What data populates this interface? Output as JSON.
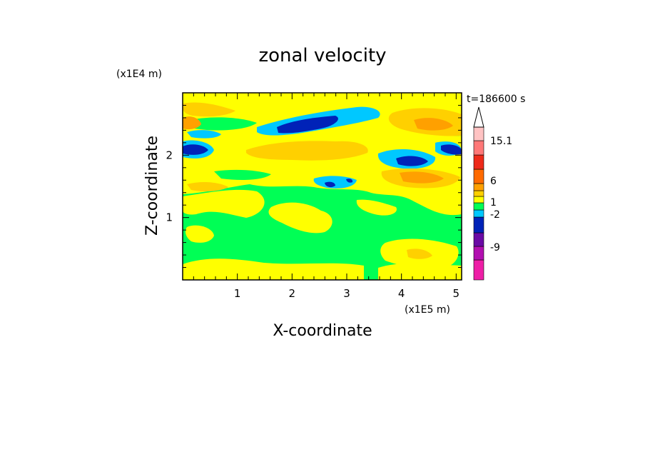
{
  "chart_data": {
    "type": "heatmap",
    "title": "zonal velocity",
    "time_label": "t=186600 s",
    "xlabel": "X-coordinate",
    "ylabel": "Z-coordinate",
    "x_unit_label": "(x1E5 m)",
    "y_unit_label": "(x1E4 m)",
    "x_ticks": [
      "1",
      "2",
      "3",
      "4",
      "5"
    ],
    "y_ticks": [
      "1",
      "2"
    ],
    "xlim": [
      0,
      5.1
    ],
    "ylim": [
      0,
      3
    ],
    "colorbar": {
      "labels": [
        "15.1",
        "6",
        "1",
        "-2",
        "-9"
      ],
      "colors": [
        "#ee1ea6",
        "#b20fb0",
        "#6a0aa5",
        "#0022b8",
        "#00c8ff",
        "#00ff55",
        "#ffff00",
        "#ffd000",
        "#ffa000",
        "#ff6a00",
        "#ee2a1a",
        "#ff7878",
        "#ffc3c3"
      ]
    },
    "fields": [
      {
        "value": 4,
        "color": "#ffd000",
        "description": "orange band near top-left edge"
      },
      {
        "value": 6,
        "color": "#ff9000",
        "description": "core near x 4.7, z 2.6"
      },
      {
        "value": -6,
        "color": "#0022b8",
        "description": "core near x 0.2, z 2.1"
      },
      {
        "value": -6,
        "color": "#0022b8",
        "description": "core near x 2.3, z 2.6"
      },
      {
        "value": -6,
        "color": "#0022b8",
        "description": "core near x 4.2, z 1.9"
      },
      {
        "value": -3,
        "color": "#00c8ff",
        "description": "cyan band z 2.7"
      },
      {
        "value": 3,
        "color": "#ffd000",
        "description": "orange band z 2.1"
      },
      {
        "value": 4,
        "color": "#ffa000",
        "description": "orange core near x 4.3, z 1.6"
      },
      {
        "value": 0,
        "color": "#00ff55",
        "description": "green background lower half"
      },
      {
        "value": 1,
        "color": "#ffff00",
        "description": "yellow patches throughout"
      }
    ]
  }
}
